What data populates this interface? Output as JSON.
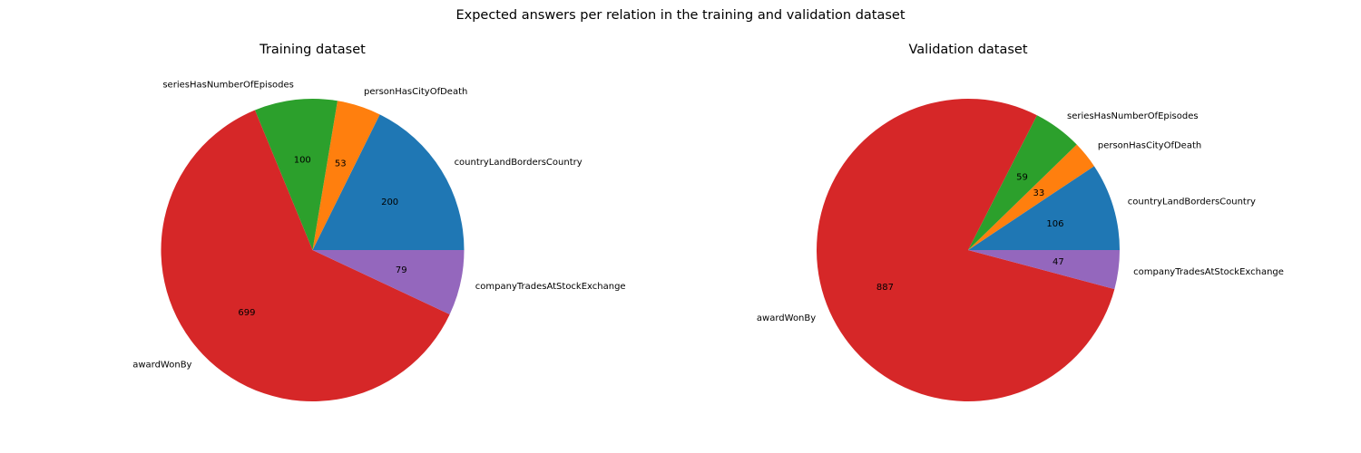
{
  "figure": {
    "suptitle": "Expected answers per relation in the training and validation dataset"
  },
  "chart_data": [
    {
      "type": "pie",
      "title": "Training dataset",
      "categories": [
        "countryLandBordersCountry",
        "personHasCityOfDeath",
        "seriesHasNumberOfEpisodes",
        "awardWonBy",
        "companyTradesAtStockExchange"
      ],
      "values": [
        200,
        53,
        100,
        699,
        79
      ],
      "value_labels": [
        "200",
        "53",
        "100",
        "699",
        "79"
      ],
      "colors": [
        "#1f77b4",
        "#ff7f0e",
        "#2ca02c",
        "#d62728",
        "#9467bd"
      ],
      "start_angle": 0,
      "direction": "counterclockwise",
      "legend": "none"
    },
    {
      "type": "pie",
      "title": "Validation dataset",
      "categories": [
        "countryLandBordersCountry",
        "personHasCityOfDeath",
        "seriesHasNumberOfEpisodes",
        "awardWonBy",
        "companyTradesAtStockExchange"
      ],
      "values": [
        106,
        33,
        59,
        887,
        47
      ],
      "value_labels": [
        "106",
        "33",
        "59",
        "887",
        "47"
      ],
      "colors": [
        "#1f77b4",
        "#ff7f0e",
        "#2ca02c",
        "#d62728",
        "#9467bd"
      ],
      "start_angle": 0,
      "direction": "counterclockwise",
      "legend": "none"
    }
  ]
}
